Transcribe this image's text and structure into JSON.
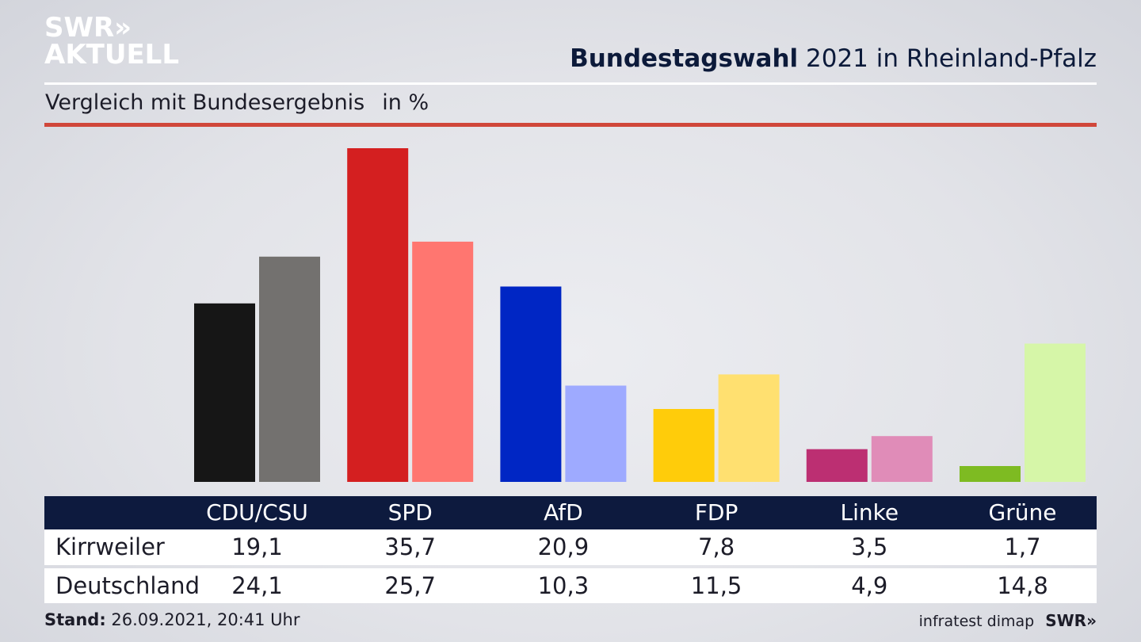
{
  "brand": {
    "line1": "SWR»",
    "line2": "AKTUELL"
  },
  "header": {
    "title_bold": "Bundestagswahl",
    "title_rest": " 2021 in Rheinland-Pfalz",
    "subtitle": "Vergleich mit Bundesergebnis",
    "unit": "in %"
  },
  "colors": {
    "navy": "#0d1a3e",
    "rule_red": "#d0473a"
  },
  "chart_data": {
    "type": "bar",
    "categories": [
      "CDU/CSU",
      "SPD",
      "AfD",
      "FDP",
      "Linke",
      "Grüne"
    ],
    "series": [
      {
        "name": "Kirrweiler",
        "values": [
          19.1,
          35.7,
          20.9,
          7.8,
          3.5,
          1.7
        ],
        "colors": [
          "#161616",
          "#d41f20",
          "#0026c4",
          "#ffcc0a",
          "#bc2f72",
          "#7ebb22"
        ]
      },
      {
        "name": "Deutschland",
        "values": [
          24.1,
          25.7,
          10.3,
          11.5,
          4.9,
          14.8
        ],
        "colors": [
          "#73716f",
          "#ff7670",
          "#9eaaff",
          "#ffe070",
          "#e08cb8",
          "#d6f6a8"
        ]
      }
    ],
    "ylim": [
      0,
      35.7
    ]
  },
  "table": {
    "headers": [
      "CDU/CSU",
      "SPD",
      "AfD",
      "FDP",
      "Linke",
      "Grüne"
    ],
    "rows": [
      {
        "label": "Kirrweiler",
        "values": [
          "19,1",
          "35,7",
          "20,9",
          "7,8",
          "3,5",
          "1,7"
        ]
      },
      {
        "label": "Deutschland",
        "values": [
          "24,1",
          "25,7",
          "10,3",
          "11,5",
          "4,9",
          "14,8"
        ]
      }
    ]
  },
  "footer": {
    "stand_label": "Stand:",
    "stand_value": " 26.09.2021, 20:41 Uhr",
    "source": "infratest dimap",
    "brand": "SWR»"
  }
}
